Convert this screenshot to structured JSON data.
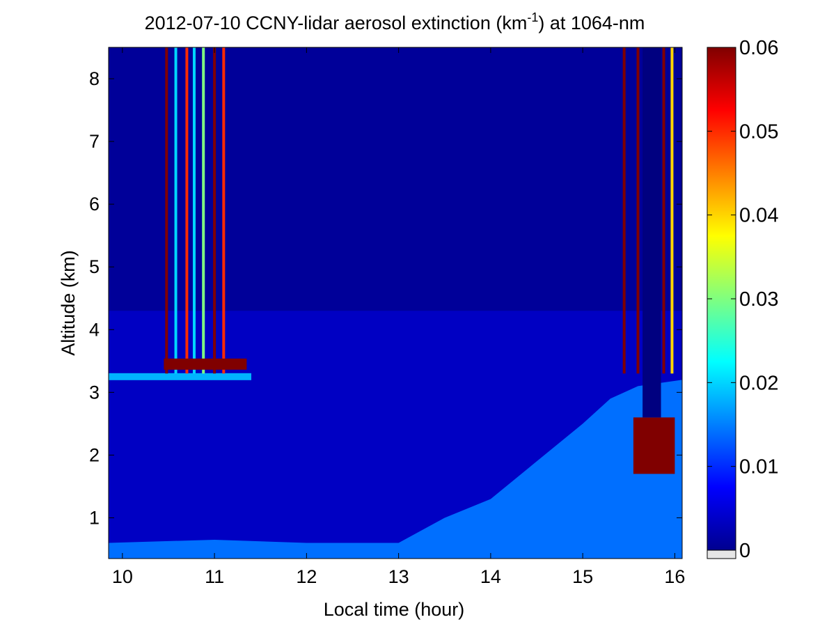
{
  "chart_data": {
    "type": "heatmap",
    "title_main": "2012-07-10 CCNY-lidar aerosol extinction (km",
    "title_sup": "-1",
    "title_tail": ") at 1064-nm",
    "xlabel": "Local time (hour)",
    "ylabel": "Altitude (km)",
    "xlim": [
      9.85,
      16.08
    ],
    "ylim": [
      0.35,
      8.5
    ],
    "x_ticks": [
      "10",
      "11",
      "12",
      "13",
      "14",
      "15",
      "16"
    ],
    "x_tick_values": [
      10,
      11,
      12,
      13,
      14,
      15,
      16
    ],
    "y_ticks": [
      "1",
      "2",
      "3",
      "4",
      "5",
      "6",
      "7",
      "8"
    ],
    "y_tick_values": [
      1,
      2,
      3,
      4,
      5,
      6,
      7,
      8
    ],
    "colorbar": {
      "range": [
        0,
        0.06
      ],
      "ticks": [
        "0",
        "0.01",
        "0.02",
        "0.03",
        "0.04",
        "0.05",
        "0.06"
      ],
      "tick_values": [
        0,
        0.01,
        0.02,
        0.03,
        0.04,
        0.05,
        0.06
      ],
      "colormap": "jet"
    },
    "features": {
      "background_extinction": 0.004,
      "upper_layer_extinction": 0.0015,
      "cloud_layer": {
        "x_start": 10.45,
        "x_end": 11.35,
        "altitude": 3.45,
        "extinction": 0.06
      },
      "aerosol_layer_base": {
        "x_start": 9.85,
        "x_end": 11.4,
        "altitude": 3.25,
        "extinction": 0.018
      },
      "boundary_layer": [
        {
          "x": 9.85,
          "top": 0.6
        },
        {
          "x": 11.0,
          "top": 0.65
        },
        {
          "x": 12.0,
          "top": 0.6
        },
        {
          "x": 13.0,
          "top": 0.6
        },
        {
          "x": 13.5,
          "top": 1.0
        },
        {
          "x": 14.0,
          "top": 1.3
        },
        {
          "x": 14.5,
          "top": 1.9
        },
        {
          "x": 15.0,
          "top": 2.5
        },
        {
          "x": 15.3,
          "top": 2.9
        },
        {
          "x": 15.6,
          "top": 3.1
        },
        {
          "x": 16.08,
          "top": 3.2
        }
      ],
      "cloud_columns": [
        {
          "x": 10.48,
          "extinction": 0.06
        },
        {
          "x": 10.58,
          "extinction": 0.02
        },
        {
          "x": 10.7,
          "extinction": 0.05
        },
        {
          "x": 10.78,
          "extinction": 0.02
        },
        {
          "x": 10.88,
          "extinction": 0.03
        },
        {
          "x": 11.0,
          "extinction": 0.06
        },
        {
          "x": 11.1,
          "extinction": 0.05
        },
        {
          "x": 15.45,
          "extinction": 0.06
        },
        {
          "x": 15.6,
          "extinction": 0.06
        },
        {
          "x": 15.68,
          "extinction": 0.05
        },
        {
          "x": 15.75,
          "extinction": 0.06
        },
        {
          "x": 15.88,
          "extinction": 0.06
        },
        {
          "x": 15.97,
          "extinction": 0.04
        }
      ],
      "low_cloud_block": {
        "x_start": 15.55,
        "x_end": 16.0,
        "y_start": 1.7,
        "y_end": 2.6,
        "extinction": 0.06
      },
      "blank_segment": {
        "x_start": 15.65,
        "x_end": 15.85,
        "y_start": 2.6,
        "y_end": 8.5
      }
    }
  }
}
